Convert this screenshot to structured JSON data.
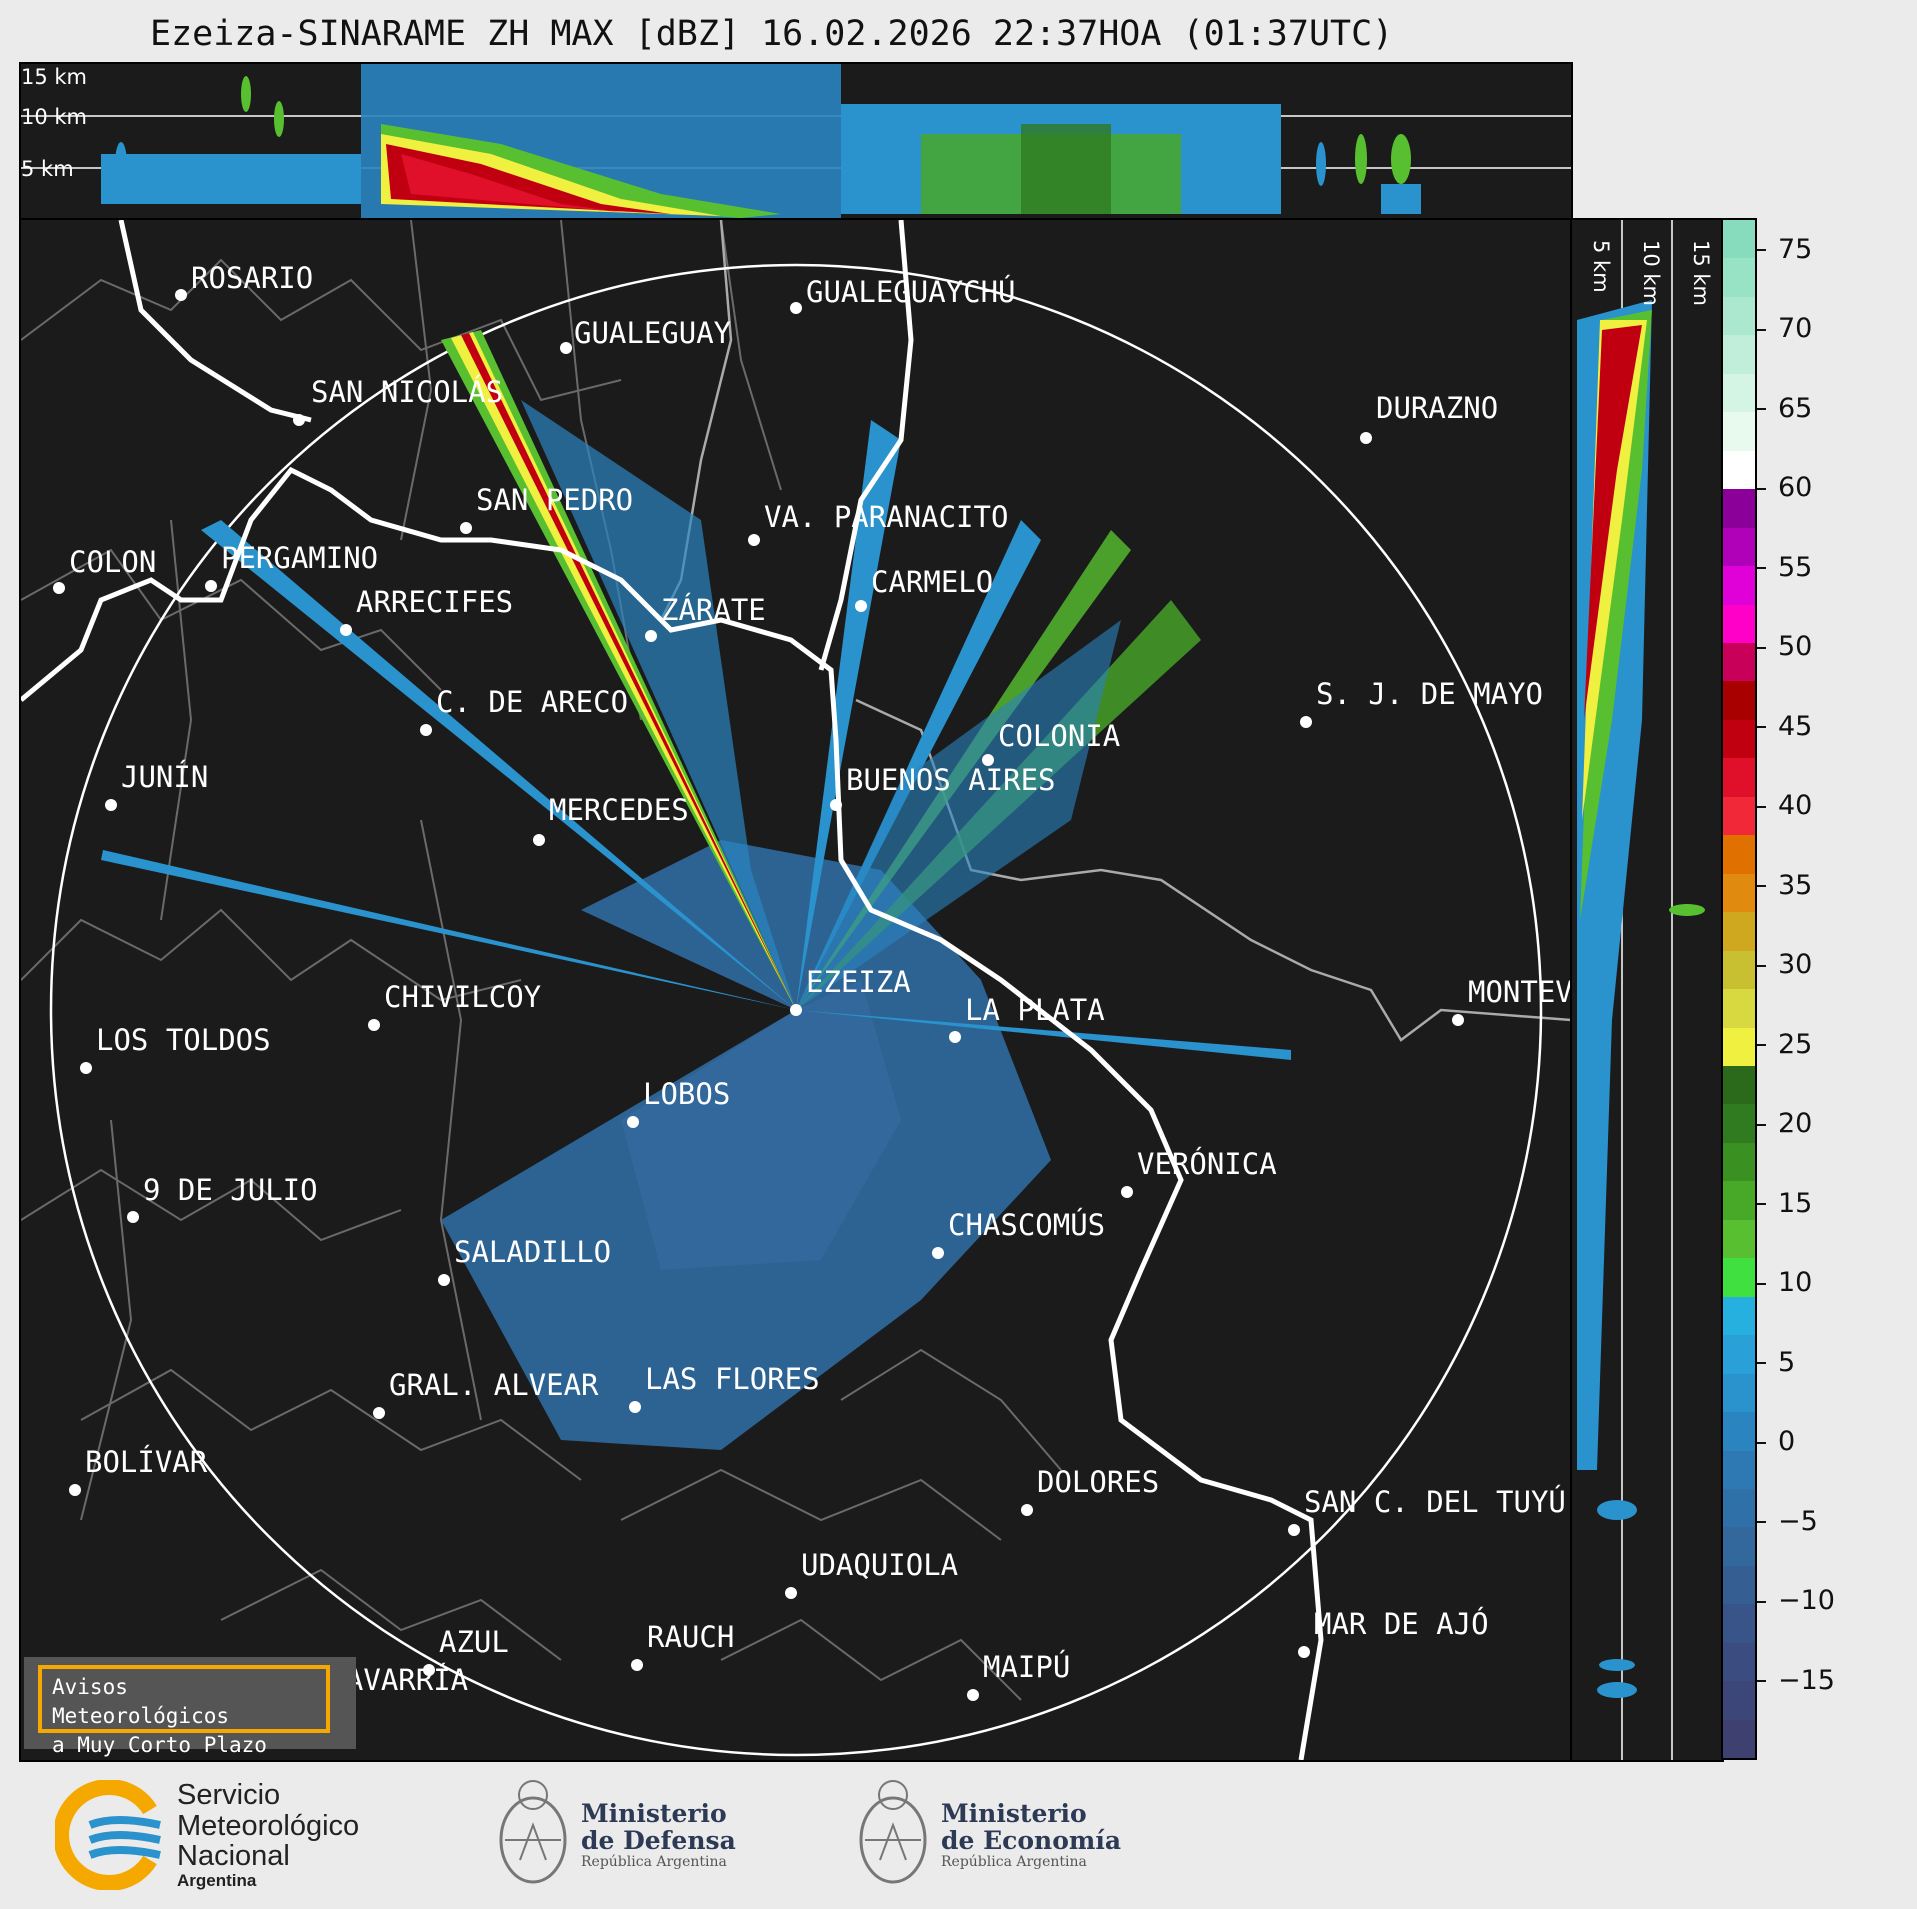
{
  "header": {
    "title": "Ezeiza-SINARAME ZH MAX [dBZ] 16.02.2026 22:37HOA (01:37UTC)"
  },
  "top_panel": {
    "altitude_labels": [
      "15 km",
      "10 km",
      "5 km"
    ]
  },
  "side_panel": {
    "altitude_labels": [
      "5 km",
      "10 km",
      "15 km"
    ]
  },
  "map": {
    "radar_site": "EZEIZA",
    "cities": [
      {
        "name": "ROSARIO"
      },
      {
        "name": "GUALEGUAYCHÚ"
      },
      {
        "name": "GUALEGUAY"
      },
      {
        "name": "SAN NICOLÁS"
      },
      {
        "name": "DURAZNO"
      },
      {
        "name": "SAN PEDRO"
      },
      {
        "name": "VA. PARANACITO"
      },
      {
        "name": "COLON"
      },
      {
        "name": "PERGAMINO"
      },
      {
        "name": "CARMELO"
      },
      {
        "name": "ARRECIFES"
      },
      {
        "name": "ZÁRATE"
      },
      {
        "name": "C. DE ARECO"
      },
      {
        "name": "S. J. DE MAYO"
      },
      {
        "name": "COLONIA"
      },
      {
        "name": "JUNÍN"
      },
      {
        "name": "BUENOS AIRES"
      },
      {
        "name": "MERCEDES"
      },
      {
        "name": "EZEIZA"
      },
      {
        "name": "MONTEVIDEO"
      },
      {
        "name": "CHIVILCOY"
      },
      {
        "name": "LA PLATA"
      },
      {
        "name": "LOS TOLDOS"
      },
      {
        "name": "LOBOS"
      },
      {
        "name": "VERÓNICA"
      },
      {
        "name": "9 DE JULIO"
      },
      {
        "name": "CHASCOMÚS"
      },
      {
        "name": "SALADILLO"
      },
      {
        "name": "GRAL. ALVEAR"
      },
      {
        "name": "LAS FLORES"
      },
      {
        "name": "BOLÍVAR"
      },
      {
        "name": "DOLORES"
      },
      {
        "name": "SAN C. DEL TUYÚ"
      },
      {
        "name": "UDAQUIOLA"
      },
      {
        "name": "MAR DE AJÓ"
      },
      {
        "name": "AZUL"
      },
      {
        "name": "RAUCH"
      },
      {
        "name": "OLAVARRÍA"
      },
      {
        "name": "MAIPÚ"
      }
    ]
  },
  "colorbar": {
    "unit": "dBZ",
    "ticks": [
      "75",
      "70",
      "65",
      "60",
      "55",
      "50",
      "45",
      "40",
      "35",
      "30",
      "25",
      "20",
      "15",
      "10",
      "5",
      "0",
      "−5",
      "−10",
      "−15"
    ],
    "range": [
      -20,
      77
    ],
    "colors_top_to_bottom": [
      "#86dcbc",
      "#98e2c6",
      "#acE8d0",
      "#c0eeda",
      "#d4f4e4",
      "#e8faee",
      "#ffffff",
      "#8a0098",
      "#b000b8",
      "#e000d8",
      "#ff00c8",
      "#c8005a",
      "#a80000",
      "#c00010",
      "#e0102a",
      "#f02838",
      "#e07000",
      "#e08a10",
      "#d0a820",
      "#c8c030",
      "#d8d840",
      "#f0f040",
      "#2a6a1a",
      "#307a20",
      "#3a9020",
      "#48a828",
      "#58c030",
      "#40e040",
      "#26b0e0",
      "#2aa0d8",
      "#2a92cc",
      "#2a84c0",
      "#2e78b4",
      "#3070a8",
      "#33689c",
      "#355e92",
      "#385488",
      "#3a4c80",
      "#3c4678",
      "#3e4070"
    ]
  },
  "warning_box": {
    "line1": "Avisos Meteorológicos",
    "line2": "a Muy Corto Plazo"
  },
  "footer": {
    "smn_line1": "Servicio",
    "smn_line2": "Meteorológico",
    "smn_line3": "Nacional",
    "smn_line4": "Argentina",
    "defensa_line1": "Ministerio",
    "defensa_line2": "de Defensa",
    "defensa_line3": "República Argentina",
    "economia_line1": "Ministerio",
    "economia_line2": "de Economía",
    "economia_line3": "República Argentina"
  }
}
